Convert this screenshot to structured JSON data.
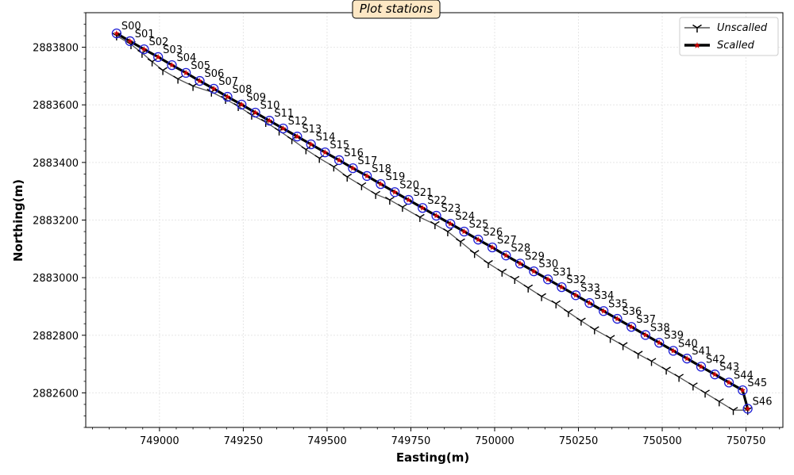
{
  "chart_data": {
    "type": "line",
    "title": "Plot stations",
    "xlabel": "Easting(m)",
    "ylabel": "Northing(m)",
    "xlim": [
      748780,
      750860
    ],
    "ylim": [
      2882480,
      2883920
    ],
    "xticks": [
      749000,
      749250,
      749500,
      749750,
      750000,
      750250,
      750500,
      750750
    ],
    "yticks": [
      2882600,
      2882800,
      2883000,
      2883200,
      2883400,
      2883600,
      2883800
    ],
    "grid": true,
    "legend_position": "top-right",
    "stations": [
      "S00",
      "S01",
      "S02",
      "S03",
      "S04",
      "S05",
      "S06",
      "S07",
      "S08",
      "S09",
      "S10",
      "S11",
      "S12",
      "S13",
      "S14",
      "S15",
      "S16",
      "S17",
      "S18",
      "S19",
      "S20",
      "S21",
      "S22",
      "S23",
      "S24",
      "S25",
      "S26",
      "S27",
      "S28",
      "S29",
      "S30",
      "S31",
      "S32",
      "S33",
      "S34",
      "S35",
      "S36",
      "S37",
      "S38",
      "S39",
      "S40",
      "S41",
      "S42",
      "S43",
      "S44",
      "S45",
      "S46"
    ],
    "series": [
      {
        "name": "Unscalled",
        "color": "#555555",
        "marker": "tri-down",
        "x": [
          748872,
          748915,
          748948,
          748978,
          749010,
          749055,
          749100,
          749155,
          749197,
          749235,
          749275,
          749317,
          749357,
          749395,
          749437,
          749477,
          749520,
          749560,
          749603,
          749645,
          749687,
          749725,
          749777,
          749822,
          749860,
          749898,
          749940,
          749981,
          750022,
          750060,
          750100,
          750140,
          750183,
          750220,
          750258,
          750298,
          750345,
          750383,
          750428,
          750468,
          750512,
          750550,
          750592,
          750628,
          750670,
          750712,
          750755
        ],
        "y": [
          2883840,
          2883810,
          2883780,
          2883750,
          2883720,
          2883690,
          2883665,
          2883645,
          2883620,
          2883595,
          2883565,
          2883540,
          2883510,
          2883480,
          2883445,
          2883415,
          2883385,
          2883350,
          2883320,
          2883290,
          2883270,
          2883245,
          2883210,
          2883185,
          2883160,
          2883125,
          2883085,
          2883050,
          2883020,
          2882995,
          2882965,
          2882935,
          2882910,
          2882880,
          2882850,
          2882820,
          2882790,
          2882765,
          2882735,
          2882710,
          2882680,
          2882655,
          2882625,
          2882600,
          2882570,
          2882540,
          2882540
        ]
      },
      {
        "name": "Scalled",
        "color": "#000000",
        "marker": "star",
        "x": [
          748872,
          748912,
          748954,
          748996,
          749037,
          749079,
          749120,
          749162,
          749203,
          749245,
          749286,
          749328,
          749369,
          749411,
          749452,
          749494,
          749536,
          749577,
          749619,
          749660,
          749702,
          749743,
          749785,
          749826,
          749868,
          749909,
          749951,
          749993,
          750034,
          750076,
          750117,
          750159,
          750200,
          750242,
          750283,
          750325,
          750366,
          750408,
          750450,
          750491,
          750533,
          750574,
          750616,
          750657,
          750699,
          750740,
          750755
        ],
        "y": [
          2883848,
          2883821,
          2883793,
          2883766,
          2883738,
          2883711,
          2883683,
          2883656,
          2883628,
          2883601,
          2883573,
          2883545,
          2883518,
          2883490,
          2883463,
          2883435,
          2883408,
          2883380,
          2883353,
          2883325,
          2883297,
          2883270,
          2883242,
          2883215,
          2883187,
          2883160,
          2883132,
          2883105,
          2883077,
          2883049,
          2883022,
          2882994,
          2882967,
          2882939,
          2882912,
          2882884,
          2882857,
          2882829,
          2882801,
          2882774,
          2882746,
          2882719,
          2882691,
          2882664,
          2882636,
          2882609,
          2882545
        ]
      }
    ]
  }
}
